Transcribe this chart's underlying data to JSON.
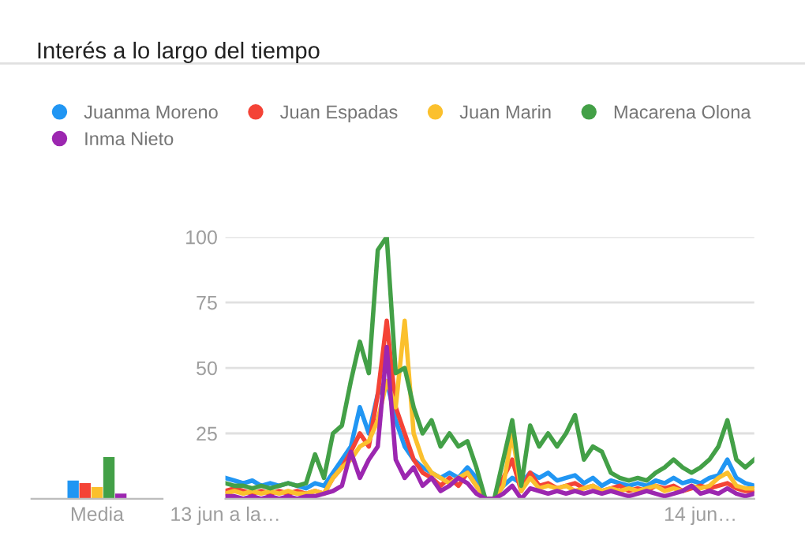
{
  "chart_data": [
    {
      "type": "bar",
      "categories": [
        "Media"
      ],
      "ylim": [
        0,
        100
      ],
      "tick_labels": "x",
      "grid": false,
      "legend": "top",
      "series": [
        {
          "name": "Juanma Moreno",
          "color": "#2196f3",
          "values": [
            7
          ]
        },
        {
          "name": "Juan Espadas",
          "color": "#f44336",
          "values": [
            6
          ]
        },
        {
          "name": "Juan Marin",
          "color": "#fbc02d",
          "values": [
            4.5
          ]
        },
        {
          "name": "Macarena Olona",
          "color": "#43a047",
          "values": [
            16
          ]
        },
        {
          "name": "Inma Nieto",
          "color": "#9c27b0",
          "values": [
            2
          ]
        }
      ]
    },
    {
      "type": "line",
      "title": "Interés a lo largo del tiempo",
      "grid": "y",
      "marker": "none",
      "line_style": "solid",
      "ylim": [
        0,
        100
      ],
      "yticks": [
        {
          "value": 0,
          "label": null
        },
        25,
        50,
        75,
        100
      ],
      "categories": [
        "13 jun a la…",
        null,
        null,
        null,
        null,
        null,
        null,
        null,
        null,
        null,
        null,
        null,
        null,
        null,
        null,
        null,
        null,
        null,
        null,
        null,
        null,
        null,
        null,
        null,
        null,
        null,
        null,
        null,
        null,
        null,
        null,
        null,
        null,
        null,
        null,
        null,
        null,
        null,
        null,
        null,
        null,
        null,
        null,
        null,
        null,
        null,
        null,
        null,
        null,
        null,
        null,
        null,
        null,
        "14 jun…",
        null,
        null,
        null,
        null,
        null,
        null
      ],
      "series": [
        {
          "color": "#2196f3",
          "values": [
            8,
            7,
            6,
            7,
            5,
            6,
            5,
            6,
            5,
            4,
            6,
            5,
            10,
            15,
            20,
            35,
            25,
            40,
            45,
            30,
            20,
            15,
            12,
            10,
            8,
            10,
            8,
            12,
            8,
            0,
            0,
            5,
            8,
            6,
            10,
            8,
            10,
            7,
            8,
            9,
            6,
            8,
            5,
            7,
            6,
            5,
            6,
            5,
            7,
            6,
            8,
            6,
            7,
            6,
            8,
            9,
            15,
            8,
            6,
            5
          ]
        },
        {
          "color": "#f44336",
          "values": [
            3,
            4,
            3,
            2,
            3,
            2,
            3,
            2,
            3,
            2,
            3,
            2,
            8,
            12,
            18,
            25,
            20,
            40,
            68,
            35,
            25,
            15,
            10,
            8,
            5,
            8,
            5,
            10,
            5,
            0,
            0,
            8,
            15,
            3,
            10,
            5,
            6,
            4,
            5,
            6,
            4,
            5,
            3,
            4,
            5,
            3,
            4,
            3,
            5,
            4,
            5,
            3,
            4,
            5,
            4,
            5,
            6,
            4,
            3,
            3
          ]
        },
        {
          "color": "#fbc02d",
          "values": [
            2,
            3,
            2,
            3,
            2,
            3,
            2,
            3,
            2,
            2,
            3,
            2,
            8,
            12,
            15,
            20,
            22,
            30,
            45,
            35,
            68,
            25,
            15,
            10,
            8,
            6,
            8,
            10,
            5,
            0,
            0,
            5,
            25,
            3,
            8,
            4,
            5,
            4,
            5,
            3,
            4,
            5,
            3,
            4,
            3,
            4,
            3,
            4,
            5,
            3,
            4,
            3,
            5,
            4,
            5,
            8,
            10,
            5,
            4,
            4
          ]
        },
        {
          "color": "#43a047",
          "values": [
            6,
            5,
            5,
            4,
            5,
            4,
            5,
            6,
            5,
            6,
            17,
            8,
            25,
            28,
            45,
            60,
            48,
            95,
            100,
            48,
            50,
            35,
            25,
            30,
            20,
            25,
            20,
            22,
            12,
            0,
            0,
            15,
            30,
            5,
            28,
            20,
            25,
            20,
            25,
            32,
            15,
            20,
            18,
            10,
            8,
            7,
            8,
            7,
            10,
            12,
            15,
            12,
            10,
            12,
            15,
            20,
            30,
            15,
            12,
            15
          ]
        },
        {
          "color": "#9c27b0",
          "values": [
            1,
            1,
            0,
            1,
            0,
            1,
            0,
            1,
            0,
            1,
            1,
            2,
            3,
            5,
            18,
            8,
            15,
            20,
            58,
            15,
            8,
            12,
            5,
            8,
            3,
            5,
            8,
            6,
            2,
            0,
            0,
            2,
            5,
            0,
            4,
            3,
            2,
            3,
            2,
            3,
            2,
            3,
            2,
            3,
            2,
            1,
            2,
            3,
            2,
            1,
            2,
            3,
            5,
            2,
            3,
            2,
            4,
            2,
            1,
            2
          ]
        }
      ]
    }
  ]
}
